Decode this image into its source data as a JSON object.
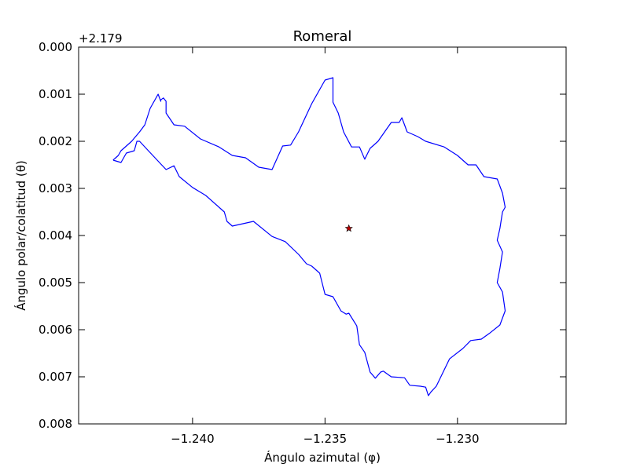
{
  "chart_data": {
    "type": "line",
    "title": "Romeral",
    "xlabel": "Ángulo azimutal (φ)",
    "ylabel": "Ángulo polar/colatitud (θ)",
    "y_offset_label": "+2.179",
    "xlim": [
      -1.2443,
      -1.2259
    ],
    "ylim": [
      0.008,
      0.0
    ],
    "y_inverted": true,
    "grid": false,
    "x_ticks": [
      -1.24,
      -1.235,
      -1.23
    ],
    "x_tick_labels": [
      "−1.240",
      "−1.235",
      "−1.230"
    ],
    "y_ticks": [
      0.0,
      0.001,
      0.002,
      0.003,
      0.004,
      0.005,
      0.006,
      0.007,
      0.008
    ],
    "y_tick_labels": [
      "0.000",
      "0.001",
      "0.002",
      "0.003",
      "0.004",
      "0.005",
      "0.006",
      "0.007",
      "0.008"
    ],
    "series": [
      {
        "name": "boundary",
        "kind": "line",
        "color": "#0000ff",
        "x": [
          -1.243,
          -1.2427,
          -1.2425,
          -1.2422,
          -1.2421,
          -1.242,
          -1.2415,
          -1.241,
          -1.2407,
          -1.2405,
          -1.24,
          -1.2395,
          -1.2388,
          -1.2387,
          -1.2385,
          -1.2377,
          -1.237,
          -1.2365,
          -1.236,
          -1.2357,
          -1.2355,
          -1.2352,
          -1.235,
          -1.2347,
          -1.2344,
          -1.2342,
          -1.2341,
          -1.2338,
          -1.2337,
          -1.2335,
          -1.2333,
          -1.2331,
          -1.2329,
          -1.2328,
          -1.2325,
          -1.232,
          -1.2318,
          -1.2314,
          -1.2312,
          -1.2311,
          -1.231,
          -1.2308,
          -1.2303,
          -1.2298,
          -1.2295,
          -1.2291,
          -1.2288,
          -1.2284,
          -1.2282,
          -1.2283,
          -1.2285,
          -1.2284,
          -1.2283,
          -1.2285,
          -1.2284,
          -1.2283,
          -1.2282,
          -1.2283,
          -1.2285,
          -1.229,
          -1.2293,
          -1.2296,
          -1.23,
          -1.2305,
          -1.2312,
          -1.2315,
          -1.2319,
          -1.232,
          -1.2321,
          -1.2322,
          -1.2325,
          -1.233,
          -1.2333,
          -1.2335,
          -1.2337,
          -1.234,
          -1.2343,
          -1.2345,
          -1.2347,
          -1.2347,
          -1.2347,
          -1.235,
          -1.2355,
          -1.236,
          -1.2363,
          -1.2366,
          -1.237,
          -1.2375,
          -1.238,
          -1.2385,
          -1.239,
          -1.2397,
          -1.2403,
          -1.2407,
          -1.241,
          -1.241,
          -1.2411,
          -1.2412,
          -1.2412,
          -1.2413,
          -1.2416,
          -1.2418,
          -1.242,
          -1.2423,
          -1.2425,
          -1.2427,
          -1.2428,
          -1.243
        ],
        "y": [
          0.0024,
          0.00245,
          0.00225,
          0.0022,
          0.002,
          0.002,
          0.0023,
          0.0026,
          0.00252,
          0.00275,
          0.00298,
          0.00315,
          0.0035,
          0.0037,
          0.0038,
          0.0037,
          0.00402,
          0.00413,
          0.0044,
          0.0046,
          0.00465,
          0.0048,
          0.00525,
          0.0053,
          0.0056,
          0.00567,
          0.00565,
          0.00592,
          0.00632,
          0.00648,
          0.0069,
          0.00703,
          0.0069,
          0.00688,
          0.007,
          0.00702,
          0.00718,
          0.0072,
          0.00722,
          0.0074,
          0.00732,
          0.0072,
          0.00662,
          0.0064,
          0.00623,
          0.0062,
          0.00608,
          0.0059,
          0.0056,
          0.0052,
          0.005,
          0.0047,
          0.00435,
          0.0041,
          0.00385,
          0.0035,
          0.0034,
          0.0031,
          0.0028,
          0.00275,
          0.0025,
          0.0025,
          0.0023,
          0.00212,
          0.002,
          0.0019,
          0.0018,
          0.00165,
          0.0015,
          0.0016,
          0.0016,
          0.002,
          0.00215,
          0.00238,
          0.00212,
          0.00212,
          0.0018,
          0.0014,
          0.00117,
          0.0008,
          0.00065,
          0.0007,
          0.0012,
          0.0018,
          0.00208,
          0.0021,
          0.0026,
          0.00255,
          0.00235,
          0.0023,
          0.00212,
          0.00195,
          0.00168,
          0.00165,
          0.0014,
          0.00115,
          0.00108,
          0.00112,
          0.00115,
          0.001,
          0.0013,
          0.00165,
          0.0018,
          0.002,
          0.0021,
          0.0022,
          0.0023,
          0.0024
        ]
      },
      {
        "name": "centroid",
        "kind": "point",
        "marker": "star",
        "color": "#c00000",
        "x": [
          -1.2341
        ],
        "y": [
          0.00385
        ]
      }
    ]
  }
}
